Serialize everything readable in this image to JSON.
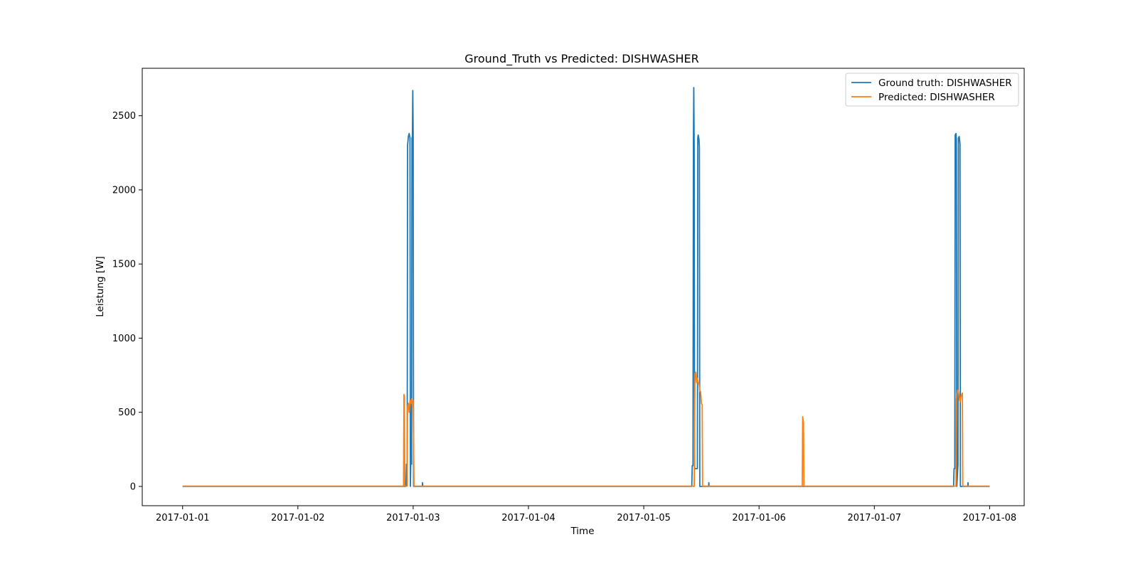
{
  "chart_data": {
    "type": "line",
    "title": "Ground_Truth vs Predicted: DISHWASHER",
    "xlabel": "Time",
    "ylabel": "Leistung [W]",
    "x_tick_labels": [
      "2017-01-01",
      "2017-01-02",
      "2017-01-03",
      "2017-01-04",
      "2017-01-05",
      "2017-01-06",
      "2017-01-07",
      "2017-01-08"
    ],
    "y_ticks": [
      0,
      500,
      1000,
      1500,
      2000,
      2500
    ],
    "xlim": [
      "2016-12-31T15:36",
      "2017-01-08T07:12"
    ],
    "ylim": [
      -130,
      2820
    ],
    "grid": false,
    "legend_position": "top-right",
    "series": [
      {
        "name": "Ground truth: DISHWASHER",
        "color": "#1f77b4",
        "points": [
          [
            "2017-01-01T00:00",
            0
          ],
          [
            "2017-01-02T22:30",
            0
          ],
          [
            "2017-01-02T22:36",
            150
          ],
          [
            "2017-01-02T22:45",
            10
          ],
          [
            "2017-01-02T22:50",
            2300
          ],
          [
            "2017-01-02T23:00",
            2360
          ],
          [
            "2017-01-02T23:10",
            2380
          ],
          [
            "2017-01-02T23:20",
            2350
          ],
          [
            "2017-01-02T23:25",
            0
          ],
          [
            "2017-01-02T23:30",
            150
          ],
          [
            "2017-01-02T23:40",
            150
          ],
          [
            "2017-01-02T23:45",
            2350
          ],
          [
            "2017-01-02T23:50",
            2360
          ],
          [
            "2017-01-02T23:55",
            2670
          ],
          [
            "2017-01-03T00:00",
            2360
          ],
          [
            "2017-01-03T00:05",
            0
          ],
          [
            "2017-01-03T01:54",
            0
          ],
          [
            "2017-01-03T01:57",
            25
          ],
          [
            "2017-01-03T02:00",
            0
          ],
          [
            "2017-01-05T10:00",
            0
          ],
          [
            "2017-01-05T10:06",
            140
          ],
          [
            "2017-01-05T10:15",
            140
          ],
          [
            "2017-01-05T10:20",
            2300
          ],
          [
            "2017-01-05T10:25",
            2690
          ],
          [
            "2017-01-05T10:30",
            2280
          ],
          [
            "2017-01-05T10:35",
            120
          ],
          [
            "2017-01-05T11:10",
            120
          ],
          [
            "2017-01-05T11:15",
            2350
          ],
          [
            "2017-01-05T11:20",
            2370
          ],
          [
            "2017-01-05T11:30",
            2340
          ],
          [
            "2017-01-05T11:35",
            2290
          ],
          [
            "2017-01-05T11:40",
            0
          ],
          [
            "2017-01-05T13:30",
            0
          ],
          [
            "2017-01-05T13:33",
            25
          ],
          [
            "2017-01-05T13:36",
            0
          ],
          [
            "2017-01-07T16:30",
            0
          ],
          [
            "2017-01-07T16:36",
            120
          ],
          [
            "2017-01-07T16:45",
            120
          ],
          [
            "2017-01-07T16:50",
            2370
          ],
          [
            "2017-01-07T17:00",
            2380
          ],
          [
            "2017-01-07T17:05",
            2340
          ],
          [
            "2017-01-07T17:10",
            0
          ],
          [
            "2017-01-07T17:25",
            150
          ],
          [
            "2017-01-07T17:30",
            2350
          ],
          [
            "2017-01-07T17:40",
            2360
          ],
          [
            "2017-01-07T17:50",
            2310
          ],
          [
            "2017-01-07T17:55",
            0
          ],
          [
            "2017-01-07T19:27",
            0
          ],
          [
            "2017-01-07T19:30",
            25
          ],
          [
            "2017-01-07T19:33",
            0
          ],
          [
            "2017-01-08T00:00",
            0
          ]
        ]
      },
      {
        "name": "Predicted: DISHWASHER",
        "color": "#ff7f0e",
        "points": [
          [
            "2017-01-01T00:00",
            2
          ],
          [
            "2017-01-02T22:00",
            2
          ],
          [
            "2017-01-02T22:05",
            620
          ],
          [
            "2017-01-02T22:10",
            600
          ],
          [
            "2017-01-02T22:15",
            2
          ],
          [
            "2017-01-02T22:45",
            2
          ],
          [
            "2017-01-02T22:50",
            540
          ],
          [
            "2017-01-02T23:00",
            560
          ],
          [
            "2017-01-02T23:10",
            500
          ],
          [
            "2017-01-02T23:20",
            580
          ],
          [
            "2017-01-02T23:30",
            560
          ],
          [
            "2017-01-02T23:40",
            590
          ],
          [
            "2017-01-02T23:50",
            540
          ],
          [
            "2017-01-03T00:00",
            580
          ],
          [
            "2017-01-03T00:10",
            2
          ],
          [
            "2017-01-05T10:15",
            2
          ],
          [
            "2017-01-05T10:20",
            0
          ],
          [
            "2017-01-05T10:30",
            0
          ],
          [
            "2017-01-05T10:40",
            760
          ],
          [
            "2017-01-05T10:50",
            770
          ],
          [
            "2017-01-05T11:00",
            700
          ],
          [
            "2017-01-05T11:10",
            730
          ],
          [
            "2017-01-05T11:20",
            690
          ],
          [
            "2017-01-05T11:30",
            700
          ],
          [
            "2017-01-05T11:40",
            640
          ],
          [
            "2017-01-05T11:50",
            640
          ],
          [
            "2017-01-05T12:00",
            560
          ],
          [
            "2017-01-05T12:10",
            550
          ],
          [
            "2017-01-05T12:15",
            2
          ],
          [
            "2017-01-06T09:00",
            2
          ],
          [
            "2017-01-06T09:05",
            470
          ],
          [
            "2017-01-06T09:10",
            450
          ],
          [
            "2017-01-06T09:15",
            430
          ],
          [
            "2017-01-06T09:20",
            2
          ],
          [
            "2017-01-07T17:00",
            2
          ],
          [
            "2017-01-07T17:05",
            590
          ],
          [
            "2017-01-07T17:10",
            620
          ],
          [
            "2017-01-07T17:20",
            650
          ],
          [
            "2017-01-07T17:30",
            640
          ],
          [
            "2017-01-07T17:40",
            600
          ],
          [
            "2017-01-07T17:50",
            570
          ],
          [
            "2017-01-07T18:00",
            600
          ],
          [
            "2017-01-07T18:10",
            620
          ],
          [
            "2017-01-07T18:20",
            630
          ],
          [
            "2017-01-07T18:25",
            2
          ],
          [
            "2017-01-08T00:00",
            2
          ]
        ]
      }
    ]
  }
}
